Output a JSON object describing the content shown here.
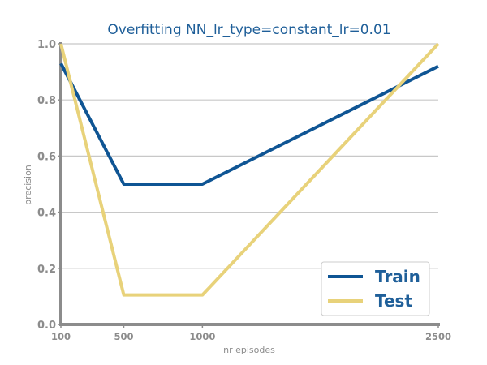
{
  "chart_data": {
    "type": "line",
    "title": "Overfitting NN_lr_type=constant_lr=0.01",
    "xlabel": "nr episodes",
    "ylabel": "precision",
    "x": [
      100,
      500,
      1000,
      2500
    ],
    "x_tick_labels": [
      "100",
      "500",
      "1000",
      "2500"
    ],
    "y_ticks": [
      0.0,
      0.2,
      0.4,
      0.6,
      0.8,
      1.0
    ],
    "y_tick_labels": [
      "0.0",
      "0.2",
      "0.4",
      "0.6",
      "0.8",
      "1.0"
    ],
    "xlim": [
      100,
      2500
    ],
    "ylim": [
      0.0,
      1.0
    ],
    "grid": "horizontal",
    "legend_position": "bottom-right",
    "series": [
      {
        "name": "Train",
        "color": "#0f5594",
        "values": [
          0.93,
          0.5,
          0.5,
          0.92
        ]
      },
      {
        "name": "Test",
        "color": "#e8d27a",
        "values": [
          1.0,
          0.105,
          0.105,
          1.0
        ]
      }
    ]
  }
}
